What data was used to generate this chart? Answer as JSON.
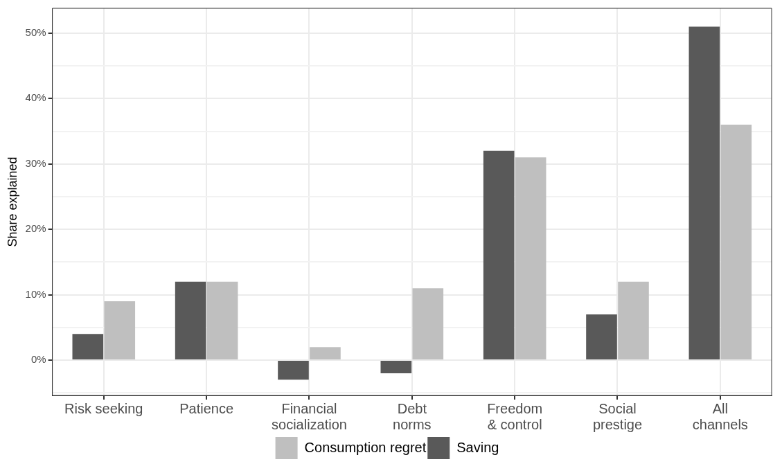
{
  "chart_data": {
    "type": "bar",
    "ylabel": "Share explained",
    "categories": [
      "Risk seeking",
      "Patience",
      "Financial\nsocialization",
      "Debt\nnorms",
      "Freedom\n& control",
      "Social\nprestige",
      "All\nchannels"
    ],
    "series": [
      {
        "name": "Saving",
        "color": "#595959",
        "values": [
          4,
          12,
          -3,
          -2,
          32,
          7,
          51
        ]
      },
      {
        "name": "Consumption regret",
        "color": "#bfbfbf",
        "values": [
          9,
          12,
          2,
          11,
          31,
          12,
          36
        ]
      }
    ],
    "ylim": [
      -5.4,
      53.8
    ],
    "yticks": [
      {
        "value": -5,
        "label": null
      },
      {
        "value": 0,
        "label": "0%"
      },
      {
        "value": 5,
        "label": null
      },
      {
        "value": 10,
        "label": "10%"
      },
      {
        "value": 15,
        "label": null
      },
      {
        "value": 20,
        "label": "20%"
      },
      {
        "value": 25,
        "label": null
      },
      {
        "value": 30,
        "label": "30%"
      },
      {
        "value": 35,
        "label": null
      },
      {
        "value": 40,
        "label": "40%"
      },
      {
        "value": 45,
        "label": null
      },
      {
        "value": 50,
        "label": "50%"
      }
    ],
    "grid": true,
    "legend": "bottom"
  }
}
